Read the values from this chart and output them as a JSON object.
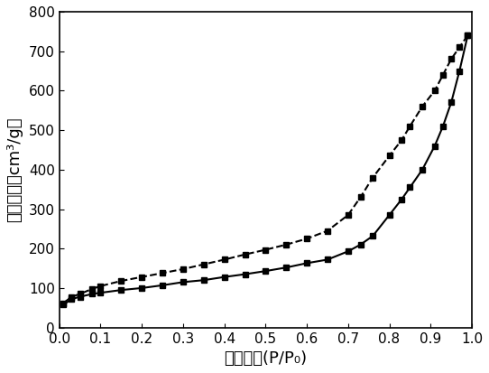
{
  "adsorption_x": [
    0.01,
    0.03,
    0.05,
    0.08,
    0.1,
    0.15,
    0.2,
    0.25,
    0.3,
    0.35,
    0.4,
    0.45,
    0.5,
    0.55,
    0.6,
    0.65,
    0.7,
    0.73,
    0.76,
    0.8,
    0.83,
    0.85,
    0.88,
    0.91,
    0.93,
    0.95,
    0.97,
    0.99
  ],
  "adsorption_y": [
    58,
    72,
    78,
    85,
    88,
    95,
    100,
    107,
    115,
    120,
    128,
    135,
    143,
    152,
    163,
    172,
    193,
    210,
    232,
    285,
    325,
    355,
    400,
    460,
    510,
    570,
    650,
    740
  ],
  "desorption_x": [
    0.99,
    0.97,
    0.95,
    0.93,
    0.91,
    0.88,
    0.85,
    0.83,
    0.8,
    0.76,
    0.73,
    0.7,
    0.65,
    0.6,
    0.55,
    0.5,
    0.45,
    0.4,
    0.35,
    0.3,
    0.25,
    0.2,
    0.15,
    0.1,
    0.08,
    0.05,
    0.03,
    0.01
  ],
  "desorption_y": [
    740,
    710,
    680,
    640,
    600,
    560,
    510,
    475,
    435,
    380,
    330,
    285,
    245,
    225,
    210,
    197,
    185,
    172,
    160,
    148,
    138,
    128,
    118,
    105,
    98,
    85,
    78,
    62
  ],
  "xlabel": "相对压力(P/P₀)",
  "ylabel": "吸收体积（cm³/g）",
  "xlim": [
    0,
    1.0
  ],
  "ylim": [
    0,
    800
  ],
  "xticks": [
    0.0,
    0.1,
    0.2,
    0.3,
    0.4,
    0.5,
    0.6,
    0.7,
    0.8,
    0.9,
    1.0
  ],
  "yticks": [
    0,
    100,
    200,
    300,
    400,
    500,
    600,
    700,
    800
  ],
  "line_color": "#000000",
  "marker": "s",
  "markersize": 5,
  "linewidth": 1.5,
  "background_color": "#ffffff",
  "figsize": [
    5.42,
    4.13
  ],
  "dpi": 100
}
